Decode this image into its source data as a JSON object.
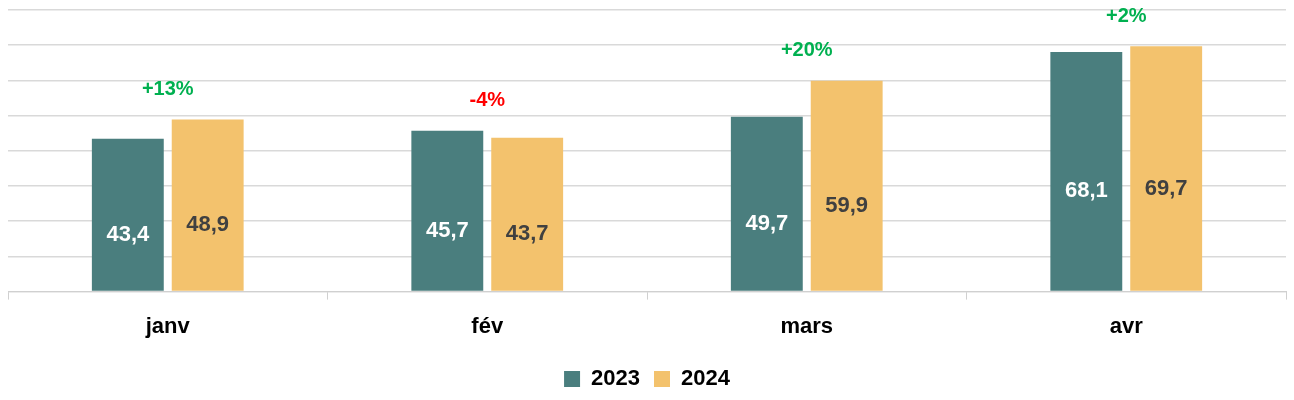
{
  "chart_data": {
    "type": "bar",
    "categories": [
      "janv",
      "fév",
      "mars",
      "avr"
    ],
    "series": [
      {
        "name": "2023",
        "color": "#4a7e7e",
        "values": [
          43.4,
          45.7,
          49.7,
          68.1
        ],
        "value_labels": [
          "43,4",
          "45,7",
          "49,7",
          "68,1"
        ]
      },
      {
        "name": "2024",
        "color": "#f3c26d",
        "values": [
          48.9,
          43.7,
          59.9,
          69.7
        ],
        "value_labels": [
          "48,9",
          "43,7",
          "59,9",
          "69,7"
        ]
      }
    ],
    "tick_labels": "x",
    "grid": "y",
    "legend": "bottom",
    "annotations": [
      "+13%",
      "-4%",
      "+20%",
      "+2%"
    ]
  }
}
